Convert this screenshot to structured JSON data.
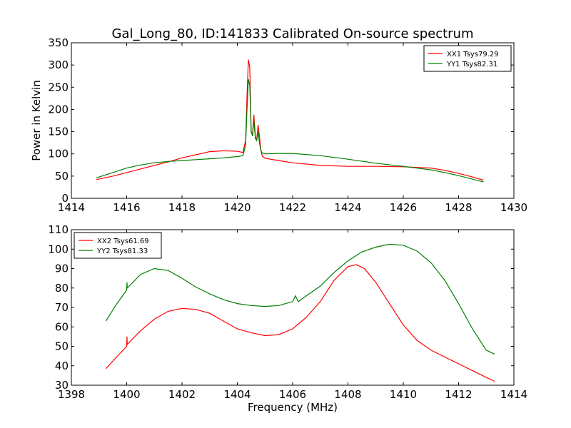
{
  "figure_title": "Gal_Long_80, ID:141833 Calibrated On-source spectrum",
  "colors": {
    "xx": "#ff0000",
    "yy": "#008000"
  },
  "chart_data": [
    {
      "type": "line",
      "title": "Gal_Long_80, ID:141833 Calibrated On-source spectrum",
      "xlabel": "",
      "ylabel": "Power in Kelvin",
      "xlim": [
        1414,
        1430
      ],
      "ylim": [
        0,
        350
      ],
      "xticks": [
        1414,
        1416,
        1418,
        1420,
        1422,
        1424,
        1426,
        1428,
        1430
      ],
      "yticks": [
        0,
        50,
        100,
        150,
        200,
        250,
        300,
        350
      ],
      "grid": false,
      "legend_position": "top-right",
      "series": [
        {
          "name": "XX1 Tsys79.29",
          "color": "#ff0000",
          "x": [
            1414.9,
            1415.5,
            1416,
            1416.5,
            1417,
            1417.5,
            1418,
            1418.5,
            1419,
            1419.5,
            1420,
            1420.2,
            1420.3,
            1420.35,
            1420.4,
            1420.45,
            1420.5,
            1420.55,
            1420.6,
            1420.65,
            1420.7,
            1420.75,
            1420.8,
            1420.85,
            1420.9,
            1421,
            1421.5,
            1422,
            1423,
            1424,
            1425,
            1426,
            1427,
            1427.5,
            1428,
            1428.5,
            1428.9
          ],
          "y": [
            42,
            50,
            58,
            66,
            74,
            82,
            91,
            98,
            105,
            107,
            106,
            103,
            130,
            230,
            312,
            295,
            150,
            145,
            188,
            140,
            130,
            165,
            140,
            110,
            95,
            90,
            85,
            80,
            74,
            72,
            72,
            71,
            68,
            63,
            56,
            48,
            41
          ]
        },
        {
          "name": "YY1 Tsys82.31",
          "color": "#008000",
          "x": [
            1414.9,
            1415.5,
            1416,
            1416.5,
            1417,
            1417.5,
            1418,
            1418.5,
            1419,
            1419.5,
            1420,
            1420.2,
            1420.3,
            1420.35,
            1420.4,
            1420.45,
            1420.5,
            1420.55,
            1420.6,
            1420.65,
            1420.7,
            1420.75,
            1420.8,
            1420.85,
            1420.9,
            1421,
            1421.5,
            1422,
            1423,
            1424,
            1425,
            1426,
            1427,
            1427.5,
            1428,
            1428.5,
            1428.9
          ],
          "y": [
            46,
            58,
            68,
            75,
            80,
            83,
            85,
            87,
            89,
            91,
            94,
            96,
            120,
            200,
            268,
            255,
            150,
            140,
            175,
            135,
            130,
            150,
            125,
            108,
            102,
            100,
            101,
            101,
            96,
            88,
            79,
            72,
            64,
            58,
            51,
            43,
            37
          ]
        }
      ]
    },
    {
      "type": "line",
      "title": "",
      "xlabel": "Frequency (MHz)",
      "ylabel": "",
      "xlim": [
        1398,
        1414
      ],
      "ylim": [
        30,
        110
      ],
      "xticks": [
        1398,
        1400,
        1402,
        1404,
        1406,
        1408,
        1410,
        1412,
        1414
      ],
      "yticks": [
        30,
        40,
        50,
        60,
        70,
        80,
        90,
        100,
        110
      ],
      "grid": false,
      "legend_position": "top-left",
      "series": [
        {
          "name": "XX2 Tsys61.69",
          "color": "#ff0000",
          "x": [
            1399.25,
            1399.6,
            1400,
            1400.01,
            1400.02,
            1400.5,
            1401,
            1401.5,
            1402,
            1402.5,
            1403,
            1403.5,
            1404,
            1404.5,
            1405,
            1405.5,
            1406,
            1406.5,
            1407,
            1407.5,
            1408,
            1408.3,
            1408.6,
            1409,
            1409.5,
            1410,
            1410.5,
            1411,
            1411.5,
            1412,
            1412.5,
            1413,
            1413.3
          ],
          "y": [
            38.5,
            44,
            50,
            55,
            51,
            58,
            64,
            68,
            69.5,
            69,
            67,
            63,
            59,
            57,
            55.5,
            56,
            59,
            65,
            73,
            84,
            91,
            92,
            90,
            83,
            72,
            61,
            53,
            48,
            44.5,
            41,
            37.5,
            34,
            32
          ]
        },
        {
          "name": "YY2 Tsys81.33",
          "color": "#008000",
          "x": [
            1399.25,
            1399.6,
            1400,
            1400.01,
            1400.02,
            1400.5,
            1401,
            1401.5,
            1402,
            1402.5,
            1403,
            1403.5,
            1404,
            1404.5,
            1405,
            1405.5,
            1406,
            1406.1,
            1406.2,
            1406.5,
            1407,
            1407.5,
            1408,
            1408.5,
            1409,
            1409.5,
            1410,
            1410.5,
            1411,
            1411.5,
            1412,
            1412.5,
            1413,
            1413.3
          ],
          "y": [
            63,
            71,
            79,
            83,
            80,
            87,
            90,
            89,
            85,
            80.5,
            77,
            74,
            72,
            71,
            70.5,
            71,
            73,
            76,
            73,
            76,
            81,
            88,
            94,
            98.5,
            101,
            102.5,
            102,
            99,
            93,
            84,
            72,
            59,
            48,
            46
          ]
        }
      ]
    }
  ]
}
